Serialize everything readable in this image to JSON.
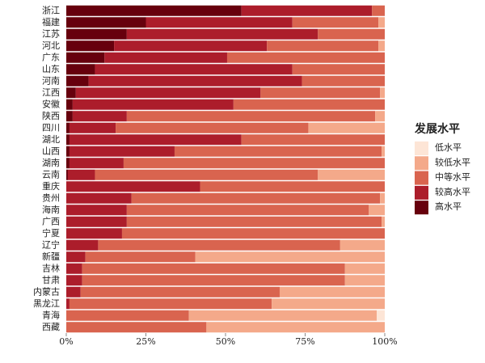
{
  "chart_data": {
    "type": "stacked_barh",
    "categories": [
      "浙江",
      "福建",
      "江苏",
      "河北",
      "广东",
      "山东",
      "河南",
      "江西",
      "安徽",
      "陕西",
      "四川",
      "湖北",
      "山西",
      "湖南",
      "云南",
      "重庆",
      "贵州",
      "海南",
      "广西",
      "宁夏",
      "辽宁",
      "新疆",
      "吉林",
      "甘肃",
      "内蒙古",
      "黑龙江",
      "青海",
      "西藏"
    ],
    "legend_title": "发展水平",
    "series": [
      {
        "name": "高水平",
        "color": "#67000d",
        "values": [
          55,
          25,
          19,
          15,
          12,
          9,
          7,
          3,
          2,
          2,
          1,
          1,
          1,
          1,
          0.5,
          0,
          0,
          0,
          0,
          0,
          0,
          0,
          0,
          0,
          0,
          0,
          0,
          0
        ]
      },
      {
        "name": "较高水平",
        "color": "#ac1d2b",
        "values": [
          41,
          46,
          60,
          48,
          38.5,
          62,
          67,
          58,
          50.5,
          17,
          14.5,
          54,
          33,
          17,
          8.5,
          42,
          20.5,
          19,
          19,
          17.5,
          10,
          6,
          5,
          5,
          4.5,
          1,
          0,
          0
        ]
      },
      {
        "name": "中等水平",
        "color": "#d9644f",
        "values": [
          4,
          27,
          21,
          35,
          49.5,
          29,
          26,
          37.5,
          47.5,
          78,
          60.5,
          45,
          65,
          82,
          70,
          58,
          78,
          76,
          80,
          82.5,
          76,
          34.5,
          82.5,
          82.5,
          62.5,
          63.5,
          38.5,
          44
        ]
      },
      {
        "name": "较低水平",
        "color": "#f4a98a",
        "values": [
          0,
          2,
          0,
          2,
          0,
          0,
          0,
          1.5,
          0,
          3,
          24,
          0,
          1,
          0,
          21,
          0,
          1.5,
          5,
          1,
          0,
          14,
          59.5,
          12.5,
          12.5,
          33,
          35.5,
          59,
          56
        ]
      },
      {
        "name": "低水平",
        "color": "#fde5d6",
        "values": [
          0,
          0,
          0,
          0,
          0,
          0,
          0,
          0,
          0,
          0,
          0,
          0,
          0,
          0,
          0,
          0,
          0,
          0,
          0,
          0,
          0,
          0,
          0,
          0,
          0,
          0,
          2.5,
          0
        ]
      }
    ],
    "xlim": [
      0,
      100
    ],
    "xticks": [
      {
        "value": 0,
        "label": "0%"
      },
      {
        "value": 25,
        "label": "25%"
      },
      {
        "value": 50,
        "label": "50%"
      },
      {
        "value": 75,
        "label": "75%"
      },
      {
        "value": 100,
        "label": "100%"
      }
    ],
    "legend_position": "right"
  }
}
